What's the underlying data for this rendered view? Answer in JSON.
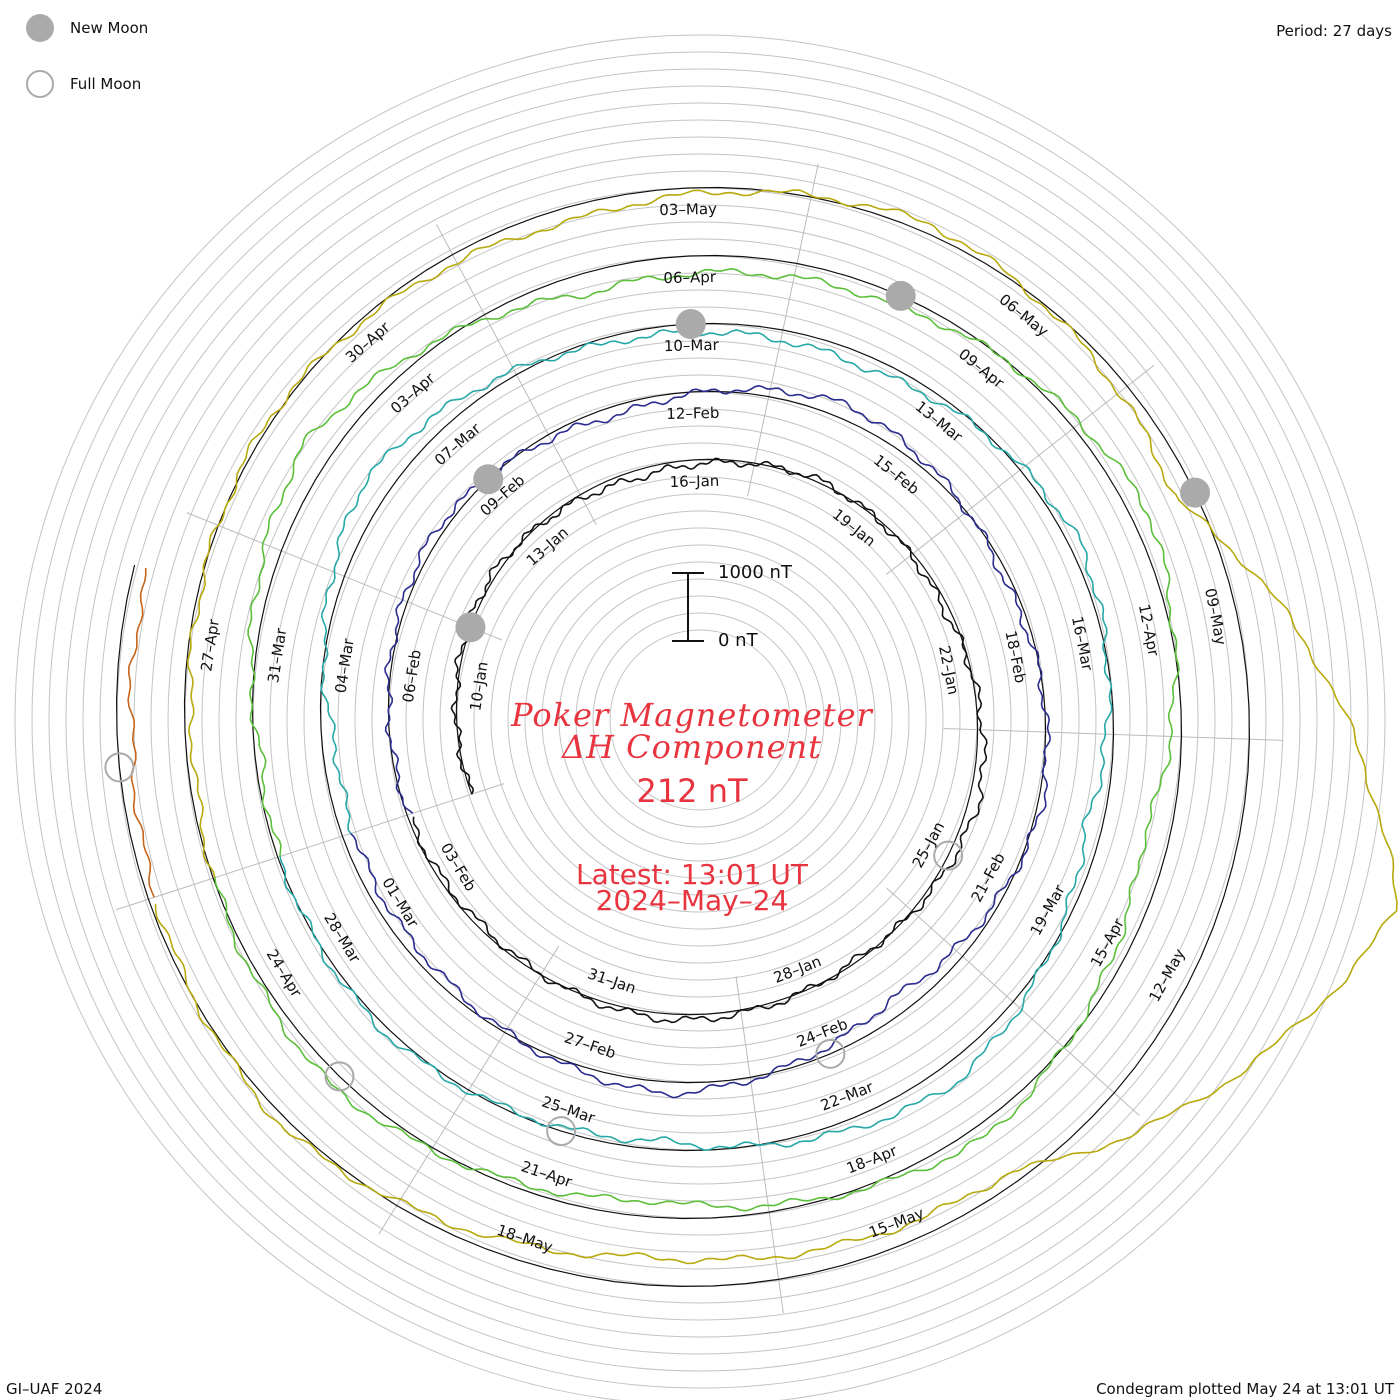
{
  "legend": {
    "new_moon_label": "New Moon",
    "full_moon_label": "Full Moon"
  },
  "period_label": "Period: 27 days",
  "title": {
    "line1": "Poker Magnetometer",
    "line2": "ΔH Component"
  },
  "current_value": "212 nT",
  "latest": {
    "time": "Latest: 13:01 UT",
    "date": "2024–May–24"
  },
  "scale_bar": {
    "top_label": "1000 nT",
    "bottom_label": "0 nT"
  },
  "footer": {
    "credit": "GI–UAF 2024",
    "plotted": "Condegram plotted May 24 at 13:01 UT"
  },
  "colors": {
    "accent_text": "#e8343f",
    "moon_marker": "#aaaaaa",
    "grid": "#c4c4c4"
  },
  "chart_data": {
    "type": "line",
    "layout": "spiral condegram",
    "start_date": "2024-01-08",
    "end_date": "2024-05-24",
    "period_days": 27,
    "rotations": [
      {
        "name": "rotation-1",
        "color": "#111111",
        "start": "2024-01-08",
        "date_labels": [
          "10–Jan",
          "13–Jan",
          "16–Jan",
          "19–Jan",
          "22–Jan",
          "25–Jan",
          "28–Jan",
          "31–Jan",
          "03–Feb"
        ]
      },
      {
        "name": "rotation-2",
        "color": "#2a2c8f",
        "start": "2024-02-04",
        "date_labels": [
          "06–Feb",
          "09–Feb",
          "12–Feb",
          "15–Feb",
          "18–Feb",
          "21–Feb",
          "24–Feb",
          "27–Feb",
          "01–Mar"
        ]
      },
      {
        "name": "rotation-3",
        "color": "#27a8a8",
        "start": "2024-03-02",
        "date_labels": [
          "04–Mar",
          "07–Mar",
          "10–Mar",
          "13–Mar",
          "16–Mar",
          "19–Mar",
          "22–Mar",
          "25–Mar",
          "28–Mar"
        ]
      },
      {
        "name": "rotation-4",
        "color": "#5bbf3a",
        "start": "2024-03-29",
        "date_labels": [
          "31–Mar",
          "03–Apr",
          "06–Apr",
          "09–Apr",
          "12–Apr",
          "15–Apr",
          "18–Apr",
          "21–Apr",
          "24–Apr"
        ]
      },
      {
        "name": "rotation-5",
        "color": "#b8a90e",
        "start": "2024-04-25",
        "date_labels": [
          "27–Apr",
          "30–Apr",
          "03–May",
          "06–May",
          "09–May",
          "12–May",
          "15–May",
          "18–May"
        ]
      },
      {
        "name": "rotation-6",
        "color": "#c8651a",
        "start": "2024-05-22",
        "date_labels": []
      }
    ],
    "daily_dH_nT": {
      "x": [
        "2024-01-09",
        "2024-01-12",
        "2024-01-15",
        "2024-01-18",
        "2024-01-21",
        "2024-01-24",
        "2024-01-27",
        "2024-01-30",
        "2024-02-02",
        "2024-02-05",
        "2024-02-08",
        "2024-02-11",
        "2024-02-14",
        "2024-02-17",
        "2024-02-20",
        "2024-02-23",
        "2024-02-26",
        "2024-02-29",
        "2024-03-03",
        "2024-03-06",
        "2024-03-09",
        "2024-03-12",
        "2024-03-15",
        "2024-03-18",
        "2024-03-21",
        "2024-03-24",
        "2024-03-27",
        "2024-03-30",
        "2024-04-02",
        "2024-04-05",
        "2024-04-08",
        "2024-04-11",
        "2024-04-14",
        "2024-04-17",
        "2024-04-20",
        "2024-04-23",
        "2024-04-26",
        "2024-04-29",
        "2024-05-02",
        "2024-05-05",
        "2024-05-08",
        "2024-05-11",
        "2024-05-14",
        "2024-05-17",
        "2024-05-20",
        "2024-05-23"
      ],
      "y": [
        0,
        -60,
        120,
        -40,
        80,
        -150,
        40,
        -90,
        60,
        20,
        -110,
        150,
        -220,
        90,
        -70,
        260,
        -180,
        120,
        200,
        -380,
        90,
        180,
        -160,
        240,
        -300,
        130,
        -80,
        90,
        -420,
        310,
        160,
        -260,
        380,
        -200,
        250,
        -180,
        110,
        -60,
        220,
        -140,
        300,
        -2500,
        180,
        420,
        -120,
        212
      ]
    },
    "new_moons": [
      "2024-01-11",
      "2024-02-09",
      "2024-03-10",
      "2024-04-08",
      "2024-05-08"
    ],
    "full_moons": [
      "2024-01-25",
      "2024-02-24",
      "2024-03-25",
      "2024-04-23",
      "2024-05-23"
    ],
    "scale_bar_nT": [
      0,
      1000
    ]
  }
}
